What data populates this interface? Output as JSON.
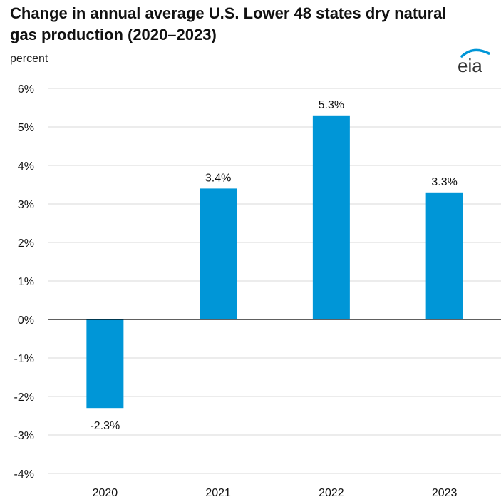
{
  "chart_data": {
    "type": "bar",
    "title": "Change in annual average U.S. Lower 48 states dry natural gas production (2020–2023)",
    "unit_label": "percent",
    "categories": [
      "2020",
      "2021",
      "2022",
      "2023"
    ],
    "values": [
      -2.3,
      3.4,
      5.3,
      3.3
    ],
    "value_labels": [
      "-2.3%",
      "3.4%",
      "5.3%",
      "3.3%"
    ],
    "ylim": [
      -4,
      6
    ],
    "yticks": [
      6,
      5,
      4,
      3,
      2,
      1,
      0,
      -1,
      -2,
      -3,
      -4
    ],
    "ytick_labels": [
      "6%",
      "5%",
      "4%",
      "3%",
      "2%",
      "1%",
      "0%",
      "-1%",
      "-2%",
      "-3%",
      "-4%"
    ],
    "grid": true,
    "bar_color": "#0096D7",
    "grid_color": "#D9D9D9",
    "axis_color": "#000000"
  },
  "logo": {
    "text": "eia",
    "arc_color": "#0096D7",
    "text_color": "#333333"
  }
}
